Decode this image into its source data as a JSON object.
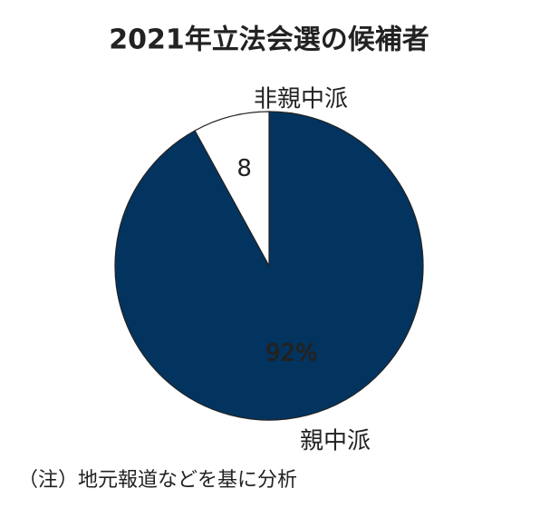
{
  "chart_data": {
    "type": "pie",
    "title": "2021年立法会選の候補者",
    "categories": [
      "親中派",
      "非親中派"
    ],
    "values": [
      92,
      8
    ],
    "value_labels": [
      "92%",
      "8"
    ],
    "colors": [
      "#033460",
      "#ffffff"
    ],
    "note": "（注）地元報道などを基に分析"
  }
}
